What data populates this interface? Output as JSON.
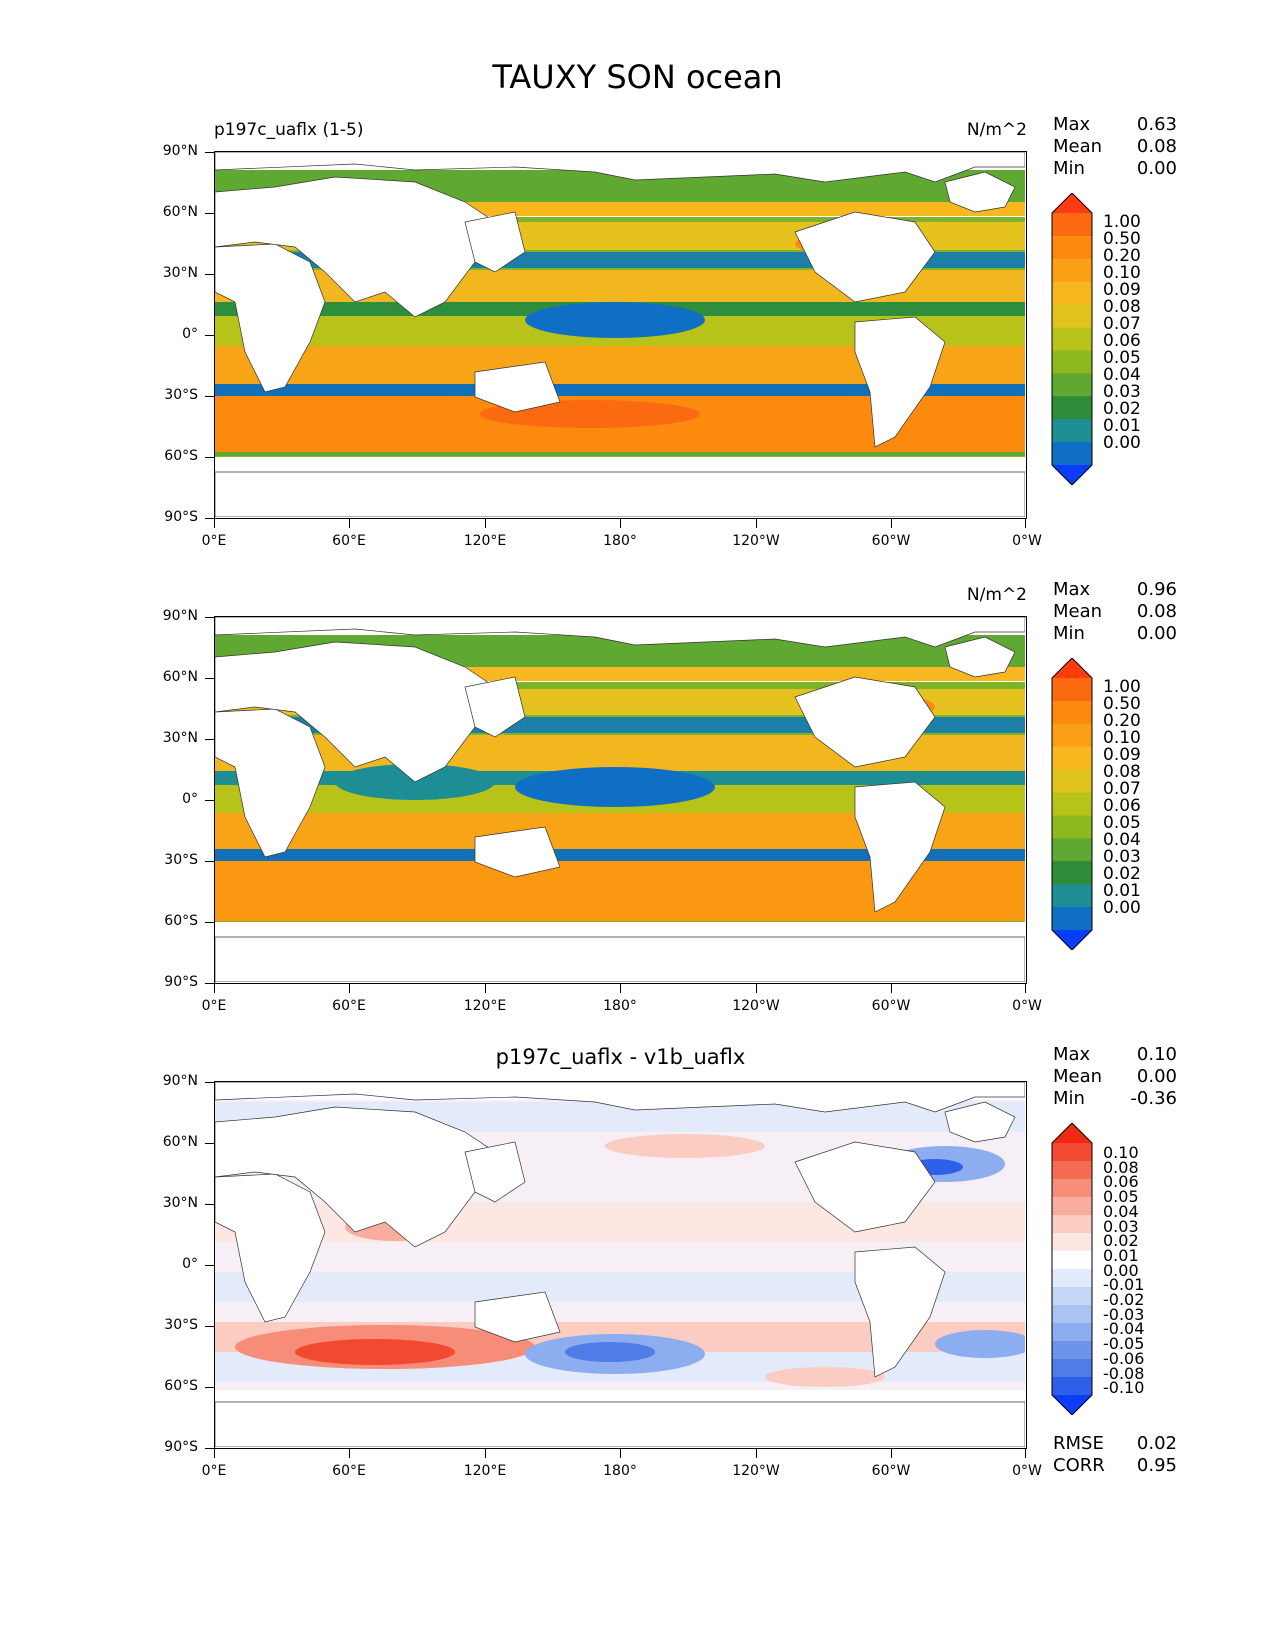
{
  "figure": {
    "title": "TAUXY SON ocean"
  },
  "colors": {
    "seq": [
      "#0a3dff",
      "#0f6fc4",
      "#1d8e93",
      "#2e8b3a",
      "#5fa832",
      "#8db91f",
      "#b8c31a",
      "#e0c41d",
      "#f7b81f",
      "#fba015",
      "#fb8a0f",
      "#fb6a10",
      "#ff3b10"
    ],
    "div": [
      "#0a3dff",
      "#2e5fe8",
      "#4f7ce6",
      "#6e94ea",
      "#8cadef",
      "#a9c3f3",
      "#c5d7f6",
      "#e3ebfb",
      "#ffffff",
      "#fde7e2",
      "#fbccc1",
      "#f9ad9e",
      "#f78c79",
      "#f46b52",
      "#f14a30",
      "#ee2a14"
    ],
    "land": "#ffffff"
  },
  "chart_data": [
    {
      "type": "heatmap",
      "panel_title": "p197c_uaflx (1-5)",
      "units": "N/m^2",
      "stats": {
        "max_label": "Max",
        "max": "0.63",
        "mean_label": "Mean",
        "mean": "0.08",
        "min_label": "Min",
        "min": "0.00"
      },
      "colorbar_levels": [
        "1.00",
        "0.50",
        "0.20",
        "0.10",
        "0.09",
        "0.08",
        "0.07",
        "0.06",
        "0.05",
        "0.04",
        "0.03",
        "0.02",
        "0.01",
        "0.00"
      ],
      "x_ticks": [
        "0°E",
        "60°E",
        "120°E",
        "180°",
        "120°W",
        "60°W",
        "0°W"
      ],
      "y_ticks": [
        "90°N",
        "60°N",
        "30°N",
        "0°",
        "30°S",
        "60°S",
        "90°S"
      ],
      "xlim": [
        0,
        360
      ],
      "ylim": [
        -90,
        90
      ]
    },
    {
      "type": "heatmap",
      "panel_title": "",
      "units": "N/m^2",
      "stats": {
        "max_label": "Max",
        "max": "0.96",
        "mean_label": "Mean",
        "mean": "0.08",
        "min_label": "Min",
        "min": "0.00"
      },
      "colorbar_levels": [
        "1.00",
        "0.50",
        "0.20",
        "0.10",
        "0.09",
        "0.08",
        "0.07",
        "0.06",
        "0.05",
        "0.04",
        "0.03",
        "0.02",
        "0.01",
        "0.00"
      ],
      "x_ticks": [
        "0°E",
        "60°E",
        "120°E",
        "180°",
        "120°W",
        "60°W",
        "0°W"
      ],
      "y_ticks": [
        "90°N",
        "60°N",
        "30°N",
        "0°",
        "30°S",
        "60°S",
        "90°S"
      ],
      "xlim": [
        0,
        360
      ],
      "ylim": [
        -90,
        90
      ]
    },
    {
      "type": "heatmap",
      "panel_title": "p197c_uaflx - v1b_uaflx",
      "units": "",
      "stats": {
        "max_label": "Max",
        "max": "0.10",
        "mean_label": "Mean",
        "mean": "0.00",
        "min_label": "Min",
        "min": "-0.36"
      },
      "extra_stats": {
        "rmse_label": "RMSE",
        "rmse": "0.02",
        "corr_label": "CORR",
        "corr": "0.95"
      },
      "colorbar_levels": [
        "0.10",
        "0.08",
        "0.06",
        "0.05",
        "0.04",
        "0.03",
        "0.02",
        "0.01",
        "0.00",
        "-0.01",
        "-0.02",
        "-0.03",
        "-0.04",
        "-0.05",
        "-0.06",
        "-0.08",
        "-0.10"
      ],
      "x_ticks": [
        "0°E",
        "60°E",
        "120°E",
        "180°",
        "120°W",
        "60°W",
        "0°W"
      ],
      "y_ticks": [
        "90°N",
        "60°N",
        "30°N",
        "0°",
        "30°S",
        "60°S",
        "90°S"
      ],
      "xlim": [
        0,
        360
      ],
      "ylim": [
        -90,
        90
      ]
    }
  ]
}
